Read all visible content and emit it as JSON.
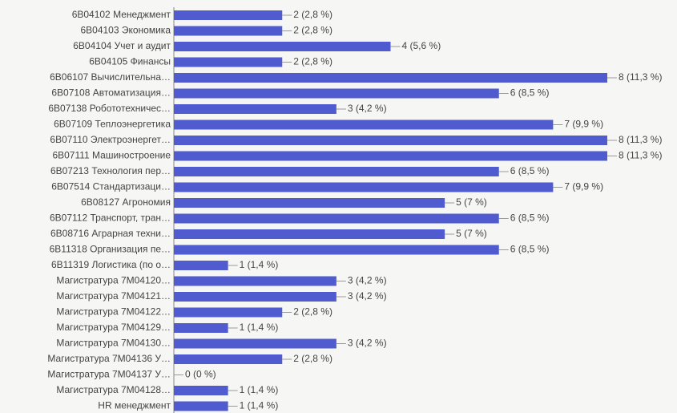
{
  "chart_data": {
    "type": "bar",
    "orientation": "horizontal",
    "color": "#4f5bcf",
    "categories": [
      "6B04102 Менеджмент",
      "6B04103 Экономика",
      "6B04104 Учет и аудит",
      "6B04105 Финансы",
      "6B06107 Вычислительна…",
      "6B07108 Автоматизация…",
      "6B07138 Робототехничес…",
      "6B07109 Теплоэнергетика",
      "6B07110 Электроэнергет…",
      "6B07111 Машиностроение",
      "6B07213 Технология пер…",
      "6B07514 Стандартизаци…",
      "6B08127 Агрономия",
      "6B07112 Транспорт, тран…",
      "6B08716 Аграрная техни…",
      "6B11318 Организация пе…",
      "6B11319 Логистика (по о…",
      "Магистратура 7M04120…",
      "Магистратура 7M04121…",
      "Магистратура 7M04122…",
      "Магистратура 7M04129…",
      "Магистратура 7M04130…",
      "Магистратура 7M04136 У…",
      "Магистратура 7M04137 У…",
      "Магистратура 7M04128…",
      "HR менеджмент"
    ],
    "values": [
      2,
      2,
      4,
      2,
      8,
      6,
      3,
      7,
      8,
      8,
      6,
      7,
      5,
      6,
      5,
      6,
      1,
      3,
      3,
      2,
      1,
      3,
      2,
      0,
      1,
      1
    ],
    "value_labels": [
      "2 (2,8 %)",
      "2 (2,8 %)",
      "4 (5,6 %)",
      "2 (2,8 %)",
      "8 (11,3 %)",
      "6 (8,5 %)",
      "3 (4,2 %)",
      "7 (9,9 %)",
      "8 (11,3 %)",
      "8 (11,3 %)",
      "6 (8,5 %)",
      "7 (9,9 %)",
      "5 (7 %)",
      "6 (8,5 %)",
      "5 (7 %)",
      "6 (8,5 %)",
      "1 (1,4 %)",
      "3 (4,2 %)",
      "3 (4,2 %)",
      "2 (2,8 %)",
      "1 (1,4 %)",
      "3 (4,2 %)",
      "2 (2,8 %)",
      "0 (0 %)",
      "1 (1,4 %)",
      "1 (1,4 %)"
    ],
    "xlim": [
      0,
      8
    ]
  }
}
